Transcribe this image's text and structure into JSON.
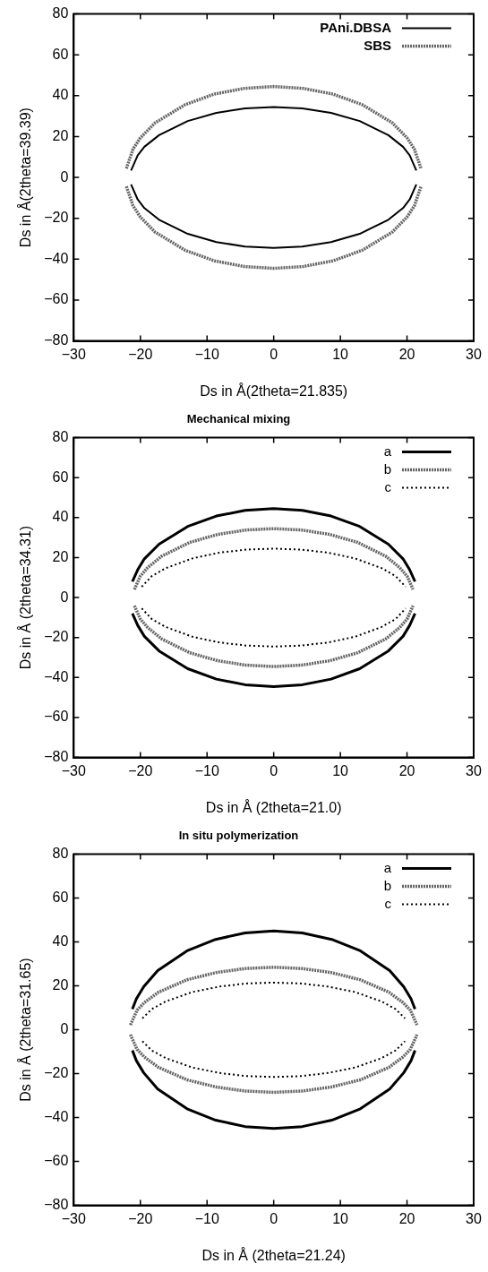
{
  "chart_data": [
    {
      "type": "line",
      "xlabel": "Ds in Å(2theta=21.835)",
      "ylabel": "Ds in Å(2theta=39.39)",
      "xlim": [
        -30,
        30
      ],
      "xticks": [
        -30,
        -20,
        -10,
        0,
        10,
        20,
        30
      ],
      "ylim": [
        -80,
        80
      ],
      "yticks": [
        -80,
        -60,
        -40,
        -20,
        0,
        20,
        40,
        60,
        80
      ],
      "legend": "top right",
      "grid": false,
      "series": [
        {
          "name": "PAni.DBSA",
          "color": "#000000",
          "line_style": "solid",
          "x": [
            -21.4,
            -20.4,
            -19.4,
            -17.2,
            -12.9,
            -8.6,
            -4.3,
            0,
            4.3,
            8.6,
            12.9,
            17.2,
            19.4,
            20.4,
            21.4
          ],
          "values": [
            3.4,
            10.8,
            15.0,
            20.7,
            27.6,
            31.6,
            33.8,
            34.5,
            33.8,
            31.6,
            27.6,
            20.7,
            15.0,
            10.8,
            3.4
          ]
        },
        {
          "color": "#000000",
          "line_style": "solid",
          "x": [
            -21.4,
            -20.4,
            -19.4,
            -17.2,
            -12.9,
            -8.6,
            -4.3,
            0,
            4.3,
            8.6,
            12.9,
            17.2,
            19.4,
            20.4,
            21.4
          ],
          "values": [
            -3.4,
            -10.8,
            -15.0,
            -20.7,
            -27.6,
            -31.6,
            -33.8,
            -34.5,
            -33.8,
            -31.6,
            -27.6,
            -20.7,
            -15.0,
            -10.8,
            -3.4
          ]
        },
        {
          "name": "SBS",
          "color": "#666666",
          "line_style": "dashed",
          "x": [
            -22.1,
            -21.1,
            -20.0,
            -17.8,
            -13.3,
            -8.9,
            -4.4,
            0,
            4.4,
            8.9,
            13.3,
            17.8,
            20.0,
            21.1,
            22.1
          ],
          "values": [
            4.4,
            13.9,
            19.4,
            26.7,
            35.6,
            40.8,
            43.6,
            44.5,
            43.6,
            40.8,
            35.6,
            26.7,
            19.4,
            13.9,
            4.4
          ]
        },
        {
          "color": "#666666",
          "line_style": "dashed",
          "x": [
            -22.1,
            -21.1,
            -20.0,
            -17.8,
            -13.3,
            -8.9,
            -4.4,
            0,
            4.4,
            8.9,
            13.3,
            17.8,
            20.0,
            21.1,
            22.1
          ],
          "values": [
            -4.4,
            -13.9,
            -19.4,
            -26.7,
            -35.6,
            -40.8,
            -43.6,
            -44.5,
            -43.6,
            -40.8,
            -35.6,
            -26.7,
            -19.4,
            -13.9,
            -4.4
          ]
        }
      ]
    },
    {
      "type": "line",
      "title": "Mechanical mixing",
      "xlabel": "Ds in Å (2theta=21.0)",
      "ylabel": "Ds in Å (2theta=34.31)",
      "xlim": [
        -30,
        30
      ],
      "xticks": [
        -30,
        -20,
        -10,
        0,
        10,
        20,
        30
      ],
      "ylim": [
        -80,
        80
      ],
      "yticks": [
        -80,
        -60,
        -40,
        -20,
        0,
        20,
        40,
        60,
        80
      ],
      "legend": "top right",
      "grid": false,
      "series": [
        {
          "name": "a",
          "color": "#000000",
          "line_style": "solid",
          "x": [
            -21.2,
            -20.4,
            -19.4,
            -17.2,
            -12.9,
            -8.6,
            -4.3,
            0,
            4.3,
            8.6,
            12.9,
            17.2,
            19.4,
            20.4,
            21.2
          ],
          "values": [
            8.0,
            13.9,
            19.4,
            26.7,
            35.6,
            40.8,
            43.6,
            44.5,
            43.6,
            40.8,
            35.6,
            26.7,
            19.4,
            13.9,
            8.0
          ]
        },
        {
          "color": "#000000",
          "line_style": "solid",
          "x": [
            -21.2,
            -20.4,
            -19.4,
            -17.2,
            -12.9,
            -8.6,
            -4.3,
            0,
            4.3,
            8.6,
            12.9,
            17.2,
            19.4,
            20.4,
            21.2
          ],
          "values": [
            -8.0,
            -13.9,
            -19.4,
            -26.7,
            -35.6,
            -40.8,
            -43.6,
            -44.5,
            -43.6,
            -40.8,
            -35.6,
            -26.7,
            -19.4,
            -13.9,
            -8.0
          ]
        },
        {
          "name": "b",
          "color": "#666666",
          "line_style": "dashed",
          "x": [
            -20.9,
            -20.0,
            -18.9,
            -16.8,
            -12.6,
            -8.4,
            -4.2,
            0,
            4.2,
            8.4,
            12.6,
            16.8,
            18.9,
            20.0,
            20.9
          ],
          "values": [
            4.1,
            10.8,
            15.0,
            20.7,
            27.6,
            31.6,
            33.8,
            34.5,
            33.8,
            31.6,
            27.6,
            20.7,
            15.0,
            10.8,
            4.1
          ]
        },
        {
          "color": "#666666",
          "line_style": "dashed",
          "x": [
            -20.9,
            -20.0,
            -18.9,
            -16.8,
            -12.6,
            -8.4,
            -4.2,
            0,
            4.2,
            8.4,
            12.6,
            16.8,
            18.9,
            20.0,
            20.9
          ],
          "values": [
            -4.1,
            -10.8,
            -15.0,
            -20.7,
            -27.6,
            -31.6,
            -33.8,
            -34.5,
            -33.8,
            -31.6,
            -27.6,
            -20.7,
            -15.0,
            -10.8,
            -4.1
          ]
        },
        {
          "name": "c",
          "color": "#000000",
          "line_style": "dotted",
          "x": [
            -19.8,
            -18.3,
            -16.2,
            -12.2,
            -8.1,
            -4.1,
            0,
            4.1,
            8.1,
            12.2,
            16.2,
            18.3,
            19.8
          ],
          "values": [
            5.4,
            10.7,
            14.7,
            19.6,
            22.5,
            24.0,
            24.5,
            24.0,
            22.5,
            19.6,
            14.7,
            10.7,
            5.4
          ]
        },
        {
          "color": "#000000",
          "line_style": "dotted",
          "x": [
            -19.8,
            -18.3,
            -16.2,
            -12.2,
            -8.1,
            -4.1,
            0,
            4.1,
            8.1,
            12.2,
            16.2,
            18.3,
            19.8
          ],
          "values": [
            -5.4,
            -10.7,
            -14.7,
            -19.6,
            -22.5,
            -24.0,
            -24.5,
            -24.0,
            -22.5,
            -19.6,
            -14.7,
            -10.7,
            -5.4
          ]
        }
      ]
    },
    {
      "type": "line",
      "title": "In situ polymerization",
      "xlabel": "Ds in Å (2theta=21.24)",
      "ylabel": "Ds in Å (2theta=31.65)",
      "xlim": [
        -30,
        30
      ],
      "xticks": [
        -30,
        -20,
        -10,
        0,
        10,
        20,
        30
      ],
      "ylim": [
        -80,
        80
      ],
      "yticks": [
        -80,
        -60,
        -40,
        -20,
        0,
        20,
        40,
        60,
        80
      ],
      "legend": "top right",
      "grid": false,
      "series": [
        {
          "name": "a",
          "color": "#000000",
          "line_style": "solid",
          "x": [
            -21.2,
            -20.6,
            -19.5,
            -17.4,
            -13.0,
            -8.7,
            -4.3,
            0,
            4.3,
            8.7,
            13.0,
            17.4,
            19.5,
            20.6,
            21.2
          ],
          "values": [
            9.4,
            14.1,
            19.6,
            27.0,
            36.0,
            41.2,
            44.1,
            45.0,
            44.1,
            41.2,
            36.0,
            27.0,
            19.6,
            14.1,
            9.4
          ]
        },
        {
          "color": "#000000",
          "line_style": "solid",
          "x": [
            -21.2,
            -20.6,
            -19.5,
            -17.4,
            -13.0,
            -8.7,
            -4.3,
            0,
            4.3,
            8.7,
            13.0,
            17.4,
            19.5,
            20.6,
            21.2
          ],
          "values": [
            -9.4,
            -14.1,
            -19.6,
            -27.0,
            -36.0,
            -41.2,
            -44.1,
            -45.0,
            -44.1,
            -41.2,
            -36.0,
            -27.0,
            -19.6,
            -14.1,
            -9.4
          ]
        },
        {
          "name": "b",
          "color": "#666666",
          "line_style": "dashed",
          "x": [
            -21.5,
            -20.5,
            -19.4,
            -17.3,
            -13.0,
            -8.6,
            -4.3,
            0,
            4.3,
            8.6,
            13.0,
            17.3,
            19.4,
            20.5,
            21.5
          ],
          "values": [
            2.2,
            8.9,
            12.4,
            17.1,
            22.8,
            26.1,
            27.9,
            28.5,
            27.9,
            26.1,
            22.8,
            17.1,
            12.4,
            8.9,
            2.2
          ]
        },
        {
          "color": "#666666",
          "line_style": "dashed",
          "x": [
            -21.5,
            -20.5,
            -19.4,
            -17.3,
            -13.0,
            -8.6,
            -4.3,
            0,
            4.3,
            8.6,
            13.0,
            17.3,
            19.4,
            20.5,
            21.5
          ],
          "values": [
            -2.2,
            -8.9,
            -12.4,
            -17.1,
            -22.8,
            -26.1,
            -27.9,
            -28.5,
            -27.9,
            -26.1,
            -22.8,
            -17.1,
            -12.4,
            -8.9,
            -2.2
          ]
        },
        {
          "name": "c",
          "color": "#000000",
          "line_style": "dotted",
          "x": [
            -19.7,
            -18.3,
            -16.2,
            -12.2,
            -8.1,
            -4.1,
            0,
            4.1,
            8.1,
            12.2,
            16.2,
            18.3,
            19.7
          ],
          "values": [
            5.2,
            9.4,
            12.9,
            17.2,
            19.7,
            21.1,
            21.5,
            21.1,
            19.7,
            17.2,
            12.9,
            9.4,
            5.2
          ]
        },
        {
          "color": "#000000",
          "line_style": "dotted",
          "x": [
            -19.7,
            -18.3,
            -16.2,
            -12.2,
            -8.1,
            -4.1,
            0,
            4.1,
            8.1,
            12.2,
            16.2,
            18.3,
            19.7
          ],
          "values": [
            -5.2,
            -9.4,
            -12.9,
            -17.2,
            -19.7,
            -21.1,
            -21.5,
            -21.1,
            -19.7,
            -17.2,
            -12.9,
            -9.4,
            -5.2
          ]
        }
      ]
    }
  ]
}
